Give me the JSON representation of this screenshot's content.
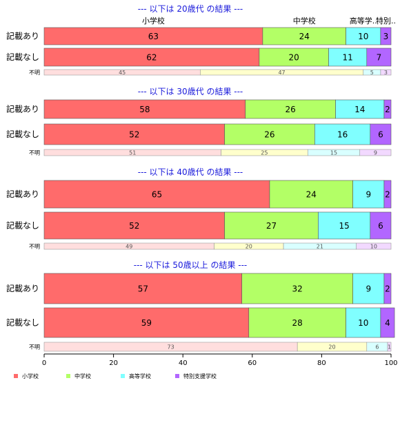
{
  "chart_data": {
    "type": "bar",
    "orientation": "horizontal",
    "stacked": true,
    "categories": [
      "小学校",
      "中学校",
      "高等学校",
      "特別支援学校"
    ],
    "colors": [
      "#ff6b6b",
      "#b3ff66",
      "#80ffff",
      "#b266ff"
    ],
    "unknown_colors": [
      "#ffdede",
      "#ffffcc",
      "#d9ffff",
      "#f2d9ff"
    ],
    "top_category_labels": [
      "小学校",
      "中学校",
      "高等学..",
      "特別.."
    ],
    "xlim": [
      0,
      100
    ],
    "xticks": [
      0,
      20,
      40,
      60,
      80,
      100
    ],
    "legend_position": "bottom-left",
    "panels": [
      {
        "title": "--- 以下は 20歳代 の結果 ---",
        "rows": [
          {
            "label": "記載あり",
            "values": [
              63,
              24,
              10,
              3
            ]
          },
          {
            "label": "記載なし",
            "values": [
              62,
              20,
              11,
              7
            ]
          },
          {
            "label": "不明",
            "values": [
              45,
              47,
              5,
              3
            ],
            "small": true
          }
        ]
      },
      {
        "title": "--- 以下は 30歳代 の結果 ---",
        "rows": [
          {
            "label": "記載あり",
            "values": [
              58,
              26,
              14,
              2
            ]
          },
          {
            "label": "記載なし",
            "values": [
              52,
              26,
              16,
              6
            ]
          },
          {
            "label": "不明",
            "values": [
              51,
              25,
              15,
              9
            ],
            "small": true
          }
        ]
      },
      {
        "title": "--- 以下は 40歳代 の結果 ---",
        "rows": [
          {
            "label": "記載あり",
            "values": [
              65,
              24,
              9,
              2
            ]
          },
          {
            "label": "記載なし",
            "values": [
              52,
              27,
              15,
              6
            ]
          },
          {
            "label": "不明",
            "values": [
              49,
              20,
              21,
              10
            ],
            "small": true
          }
        ]
      },
      {
        "title": "--- 以下は 50歳以上 の結果 ---",
        "rows": [
          {
            "label": "記載あり",
            "values": [
              57,
              32,
              9,
              2
            ]
          },
          {
            "label": "記載なし",
            "values": [
              59,
              28,
              10,
              4
            ]
          },
          {
            "label": "不明",
            "values": [
              73,
              20,
              6,
              1
            ],
            "small": true
          }
        ]
      }
    ]
  }
}
